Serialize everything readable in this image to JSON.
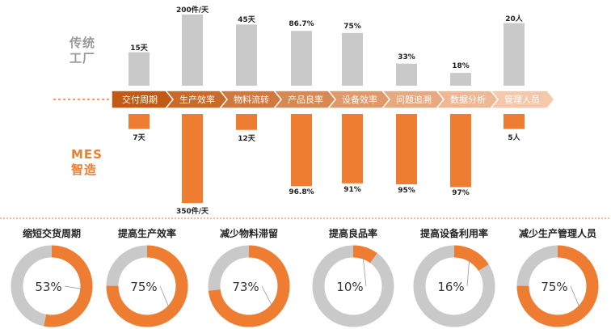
{
  "row_labels": {
    "traditional": [
      "传统",
      "工厂"
    ],
    "mes": [
      "MES",
      "智造"
    ]
  },
  "colors": {
    "gray": "#c9c9c9",
    "orange": "#ee7d31",
    "arrow_dark": "#c05a14",
    "arrow_light": "#f6c8ab"
  },
  "chart_data": [
    {
      "type": "bar",
      "categories": [
        "交付周期",
        "生产效率",
        "物料流转",
        "产品良率",
        "设备效率",
        "问题追溯",
        "数据分析",
        "管理人员"
      ],
      "series": [
        {
          "values_label": [
            "15天",
            "200件/天",
            "45天",
            "86.7%",
            "75%",
            "33%",
            "18%",
            "20人"
          ],
          "values_rel": [
            0.47,
            1.0,
            0.86,
            0.77,
            0.74,
            0.31,
            0.18,
            0.88
          ]
        },
        {
          "values_label": [
            "7天",
            "350件/天",
            "12天",
            "96.8%",
            "91%",
            "95%",
            "97%",
            "5人"
          ],
          "values_rel": [
            0.16,
            0.95,
            0.17,
            0.77,
            0.74,
            0.75,
            0.78,
            0.16
          ]
        }
      ]
    },
    {
      "type": "pie",
      "titles": [
        "缩短交货周期",
        "提高生产效率",
        "减少物料滞留",
        "提高良品率",
        "提高设备利用率",
        "减少生产管理人员"
      ],
      "values": [
        53,
        75,
        73,
        10,
        16,
        75
      ],
      "labels": [
        "53%",
        "75%",
        "73%",
        "10%",
        "16%",
        "75%"
      ]
    }
  ]
}
